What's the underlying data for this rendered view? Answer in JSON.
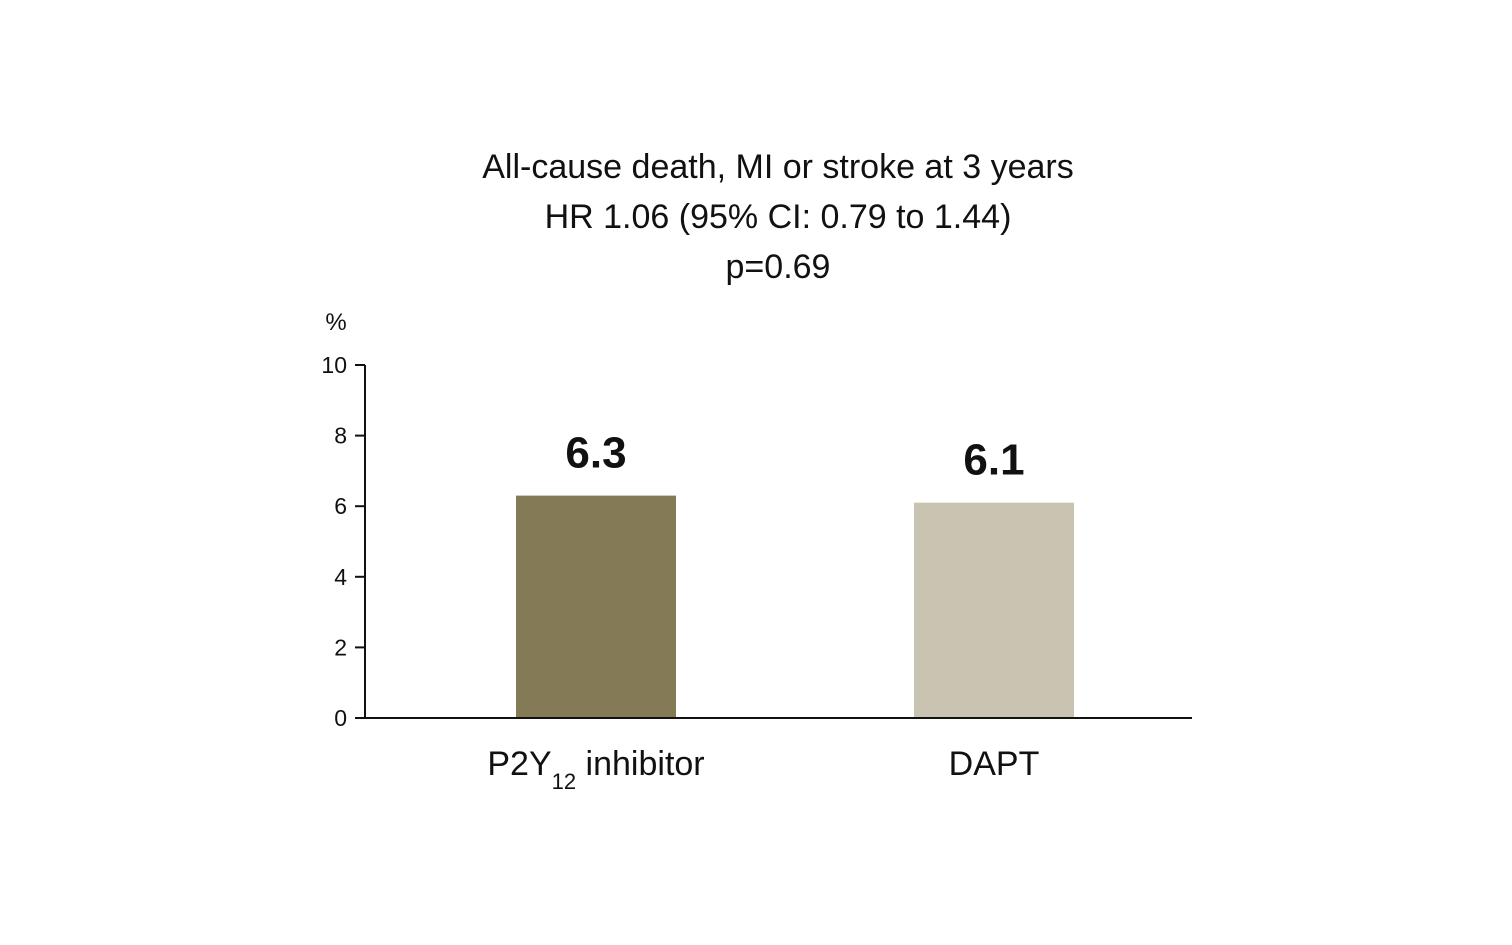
{
  "chart_data": {
    "type": "bar",
    "title": [
      "All-cause death, MI or stroke at 3 years",
      "HR 1.06 (95% CI: 0.79 to 1.44)",
      "p=0.69"
    ],
    "ylabel": "%",
    "ylim": [
      0,
      10
    ],
    "yticks": [
      0,
      2,
      4,
      6,
      8,
      10
    ],
    "categories": [
      {
        "main": "P2Y",
        "sub": "12",
        "rest": " inhibitor"
      },
      {
        "main": "DAPT",
        "sub": "",
        "rest": ""
      }
    ],
    "values": [
      6.3,
      6.1
    ],
    "value_labels": [
      "6.3",
      "6.1"
    ],
    "bar_colors": [
      "#847a56",
      "#c9c4b1"
    ],
    "grid": false,
    "legend": "none"
  }
}
